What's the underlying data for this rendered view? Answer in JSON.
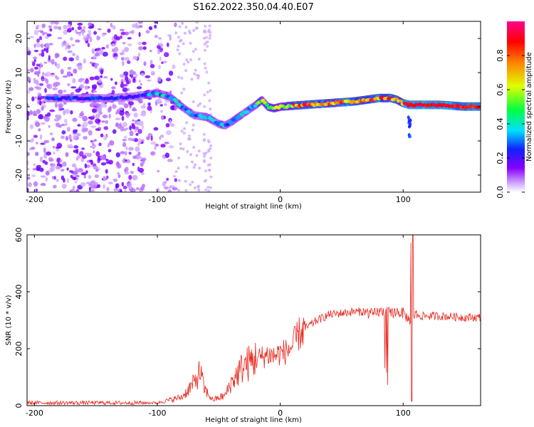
{
  "title": "S162.2022.350.04.40.E07",
  "chart_data": [
    {
      "type": "heatmap",
      "name": "spectrogram",
      "xlabel": "Height of straight line (km)",
      "ylabel": "Frequency (Hz)",
      "xlim": [
        -206,
        163
      ],
      "ylim": [
        -25,
        25
      ],
      "xticks": [
        -200,
        -100,
        0,
        100
      ],
      "yticks": [
        -20,
        -10,
        0,
        10,
        20
      ],
      "colorbar": {
        "label": "Normalized spectral amplitude",
        "range": [
          0.0,
          1.0
        ],
        "ticks": [
          "0.0",
          "0.2",
          "0.4",
          "0.6",
          "0.8"
        ],
        "colors": [
          "#ffffff",
          "#8a00ff",
          "#1020ff",
          "#00e0ff",
          "#00ff40",
          "#e0ff00",
          "#ff8000",
          "#ff0000",
          "#ff0090"
        ]
      },
      "ridge": {
        "x": [
          -180,
          -160,
          -140,
          -120,
          -110,
          -100,
          -90,
          -80,
          -70,
          -60,
          -50,
          -45,
          -40,
          -30,
          -20,
          -15,
          -10,
          -5,
          0,
          20,
          40,
          60,
          80,
          90,
          95,
          100,
          105,
          110,
          130,
          150,
          163
        ],
        "y": [
          2.5,
          2.5,
          2.5,
          3,
          3.5,
          4,
          3,
          0,
          -2.5,
          -3,
          -5,
          -5.5,
          -4.5,
          -2,
          0.5,
          2,
          0,
          -0.5,
          0,
          0.5,
          1,
          1.5,
          2.5,
          2.5,
          2,
          1,
          0.5,
          0.5,
          0.5,
          0,
          0
        ]
      }
    },
    {
      "type": "line",
      "name": "snr",
      "xlabel": "Height of straight line (km)",
      "ylabel": "SNR (10 * v/v)",
      "xlim": [
        -206,
        163
      ],
      "ylim": [
        0,
        600
      ],
      "xticks": [
        -200,
        -100,
        0,
        100
      ],
      "yticks": [
        0,
        200,
        400,
        600
      ],
      "color": "#e8281e",
      "series": [
        {
          "x": [
            -206,
            -150,
            -100,
            -80,
            -70,
            -65,
            -62,
            -55,
            -45,
            -40,
            -35,
            -30,
            -25,
            -20,
            -15,
            -10,
            -5,
            0,
            5,
            10,
            15,
            20,
            30,
            40,
            50,
            60,
            70,
            75,
            80,
            85,
            90,
            95,
            100,
            105,
            108,
            110,
            115,
            130,
            150,
            163
          ],
          "y": [
            10,
            10,
            10,
            30,
            80,
            120,
            60,
            20,
            35,
            80,
            110,
            140,
            150,
            165,
            170,
            180,
            175,
            185,
            190,
            210,
            250,
            270,
            300,
            320,
            325,
            330,
            330,
            320,
            330,
            330,
            325,
            330,
            325,
            300,
            320,
            320,
            315,
            315,
            310,
            310
          ]
        }
      ]
    }
  ]
}
